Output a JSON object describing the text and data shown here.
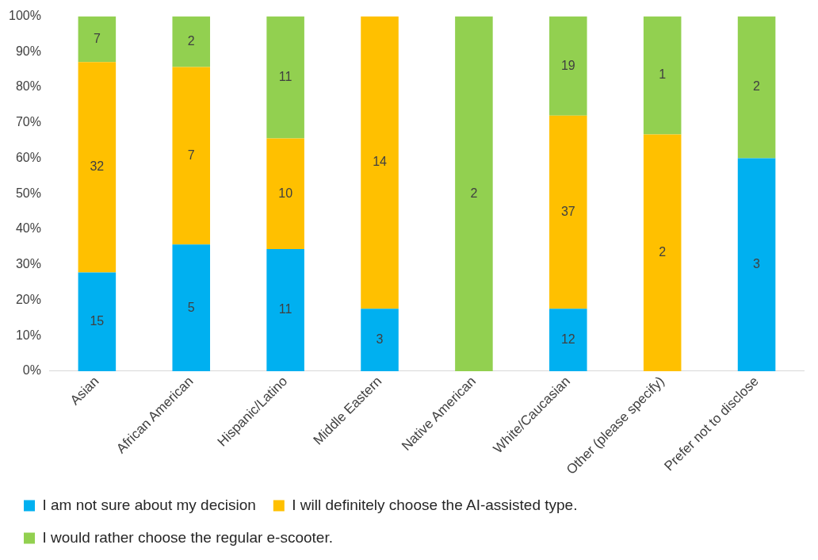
{
  "chart_data": {
    "type": "bar",
    "stacked": true,
    "categories": [
      "Asian",
      "African American",
      "Hispanic/Latino",
      "Middle Eastern",
      "Native American",
      "White/Caucasian",
      "Other (please specify)",
      "Prefer not to disclose"
    ],
    "series": [
      {
        "name": "I am not sure about my decision",
        "color": "#00b0f0",
        "values": [
          27.8,
          35.7,
          34.4,
          17.6,
          0,
          17.6,
          0,
          60
        ]
      },
      {
        "name": "I will definitely choose the AI-assisted type.",
        "color": "#ffc000",
        "values": [
          59.3,
          50,
          31.2,
          82.4,
          0,
          54.4,
          66.7,
          null
        ]
      },
      {
        "name": "I would rather choose the regular e-scooter.",
        "color": "#92d050",
        "values": [
          12.9,
          14.3,
          34.4,
          0,
          100,
          28,
          33.3,
          40
        ]
      }
    ],
    "annotations": [
      "15",
      "32",
      "7",
      "5",
      "7",
      "2",
      "11",
      "10",
      "11",
      "3",
      "14",
      "2",
      "12",
      "37",
      "19",
      "2",
      "1",
      "3",
      "2"
    ],
    "ylim": [
      0,
      100
    ],
    "yticks": [
      {
        "value": 0,
        "label": "0%"
      },
      {
        "value": 10,
        "label": "10%"
      },
      {
        "value": 20,
        "label": "20%"
      },
      {
        "value": 30,
        "label": "30%"
      },
      {
        "value": 40,
        "label": "40%"
      },
      {
        "value": 50,
        "label": "50%"
      },
      {
        "value": 60,
        "label": "60%"
      },
      {
        "value": 70,
        "label": "70%"
      },
      {
        "value": 80,
        "label": "80%"
      },
      {
        "value": 90,
        "label": "90%"
      },
      {
        "value": 100,
        "label": "100%"
      }
    ],
    "grid": false,
    "legend": "bottom"
  }
}
